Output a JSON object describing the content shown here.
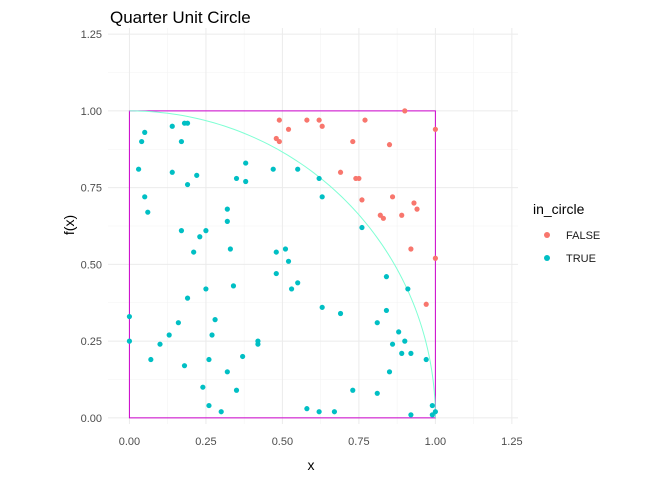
{
  "chart_data": {
    "type": "scatter",
    "title": "Quarter Unit Circle",
    "xlabel": "x",
    "ylabel": "f(x)",
    "xlim": [
      -0.07,
      1.27
    ],
    "ylim": [
      -0.02,
      1.27
    ],
    "xticks": [
      "0.00",
      "0.25",
      "0.50",
      "0.75",
      "1.00",
      "1.25"
    ],
    "yticks": [
      "0.00",
      "0.25",
      "0.50",
      "0.75",
      "1.00",
      "1.25"
    ],
    "xtick_values": [
      0,
      0.25,
      0.5,
      0.75,
      1.0,
      1.25
    ],
    "ytick_values": [
      0,
      0.25,
      0.5,
      0.75,
      1.0,
      1.25
    ],
    "grid": true,
    "legend": {
      "title": "in_circle",
      "position": "right"
    },
    "colors": {
      "FALSE": "#F8766D",
      "TRUE": "#00BFC4",
      "arc": "#7FFFD4",
      "square": "#CC00CC"
    },
    "series": [
      {
        "name": "FALSE",
        "points": [
          [
            0.48,
            0.91
          ],
          [
            0.49,
            0.9
          ],
          [
            0.49,
            0.97
          ],
          [
            0.52,
            0.94
          ],
          [
            0.58,
            0.97
          ],
          [
            0.62,
            0.97
          ],
          [
            0.63,
            0.95
          ],
          [
            0.73,
            0.9
          ],
          [
            0.74,
            0.78
          ],
          [
            0.75,
            0.78
          ],
          [
            0.77,
            0.97
          ],
          [
            0.82,
            0.66
          ],
          [
            0.83,
            0.65
          ],
          [
            0.85,
            0.89
          ],
          [
            0.86,
            0.72
          ],
          [
            0.89,
            0.66
          ],
          [
            0.9,
            1.0
          ],
          [
            0.92,
            0.55
          ],
          [
            0.93,
            0.7
          ],
          [
            0.94,
            0.68
          ],
          [
            0.97,
            0.37
          ],
          [
            1.0,
            0.52
          ],
          [
            1.0,
            0.94
          ],
          [
            0.76,
            0.71
          ],
          [
            0.69,
            0.8
          ]
        ]
      },
      {
        "name": "TRUE",
        "points": [
          [
            0.0,
            0.33
          ],
          [
            0.0,
            0.25
          ],
          [
            0.03,
            0.81
          ],
          [
            0.04,
            0.9
          ],
          [
            0.05,
            0.93
          ],
          [
            0.05,
            0.72
          ],
          [
            0.06,
            0.67
          ],
          [
            0.07,
            0.19
          ],
          [
            0.1,
            0.24
          ],
          [
            0.13,
            0.27
          ],
          [
            0.14,
            0.95
          ],
          [
            0.14,
            0.8
          ],
          [
            0.16,
            0.31
          ],
          [
            0.17,
            0.61
          ],
          [
            0.17,
            0.9
          ],
          [
            0.18,
            0.96
          ],
          [
            0.18,
            0.17
          ],
          [
            0.19,
            0.96
          ],
          [
            0.19,
            0.39
          ],
          [
            0.19,
            0.76
          ],
          [
            0.21,
            0.54
          ],
          [
            0.22,
            0.79
          ],
          [
            0.23,
            0.59
          ],
          [
            0.24,
            0.1
          ],
          [
            0.25,
            0.61
          ],
          [
            0.25,
            0.42
          ],
          [
            0.26,
            0.04
          ],
          [
            0.26,
            0.19
          ],
          [
            0.27,
            0.27
          ],
          [
            0.28,
            0.32
          ],
          [
            0.3,
            0.02
          ],
          [
            0.32,
            0.68
          ],
          [
            0.32,
            0.64
          ],
          [
            0.32,
            0.15
          ],
          [
            0.33,
            0.55
          ],
          [
            0.34,
            0.43
          ],
          [
            0.35,
            0.09
          ],
          [
            0.35,
            0.78
          ],
          [
            0.37,
            0.2
          ],
          [
            0.38,
            0.83
          ],
          [
            0.38,
            0.77
          ],
          [
            0.42,
            0.25
          ],
          [
            0.42,
            0.24
          ],
          [
            0.47,
            0.81
          ],
          [
            0.48,
            0.54
          ],
          [
            0.48,
            0.47
          ],
          [
            0.51,
            0.55
          ],
          [
            0.52,
            0.51
          ],
          [
            0.53,
            0.42
          ],
          [
            0.55,
            0.44
          ],
          [
            0.55,
            0.81
          ],
          [
            0.58,
            0.03
          ],
          [
            0.62,
            0.02
          ],
          [
            0.62,
            0.78
          ],
          [
            0.63,
            0.72
          ],
          [
            0.63,
            0.36
          ],
          [
            0.67,
            0.02
          ],
          [
            0.69,
            0.34
          ],
          [
            0.73,
            0.09
          ],
          [
            0.76,
            0.62
          ],
          [
            0.81,
            0.08
          ],
          [
            0.81,
            0.31
          ],
          [
            0.84,
            0.46
          ],
          [
            0.85,
            0.15
          ],
          [
            0.86,
            0.24
          ],
          [
            0.88,
            0.28
          ],
          [
            0.89,
            0.21
          ],
          [
            0.9,
            0.25
          ],
          [
            0.91,
            0.42
          ],
          [
            0.92,
            0.21
          ],
          [
            0.92,
            0.01
          ],
          [
            0.97,
            0.19
          ],
          [
            0.99,
            0.04
          ],
          [
            0.99,
            0.01
          ],
          [
            1.0,
            0.02
          ],
          [
            0.84,
            0.35
          ]
        ]
      }
    ]
  }
}
